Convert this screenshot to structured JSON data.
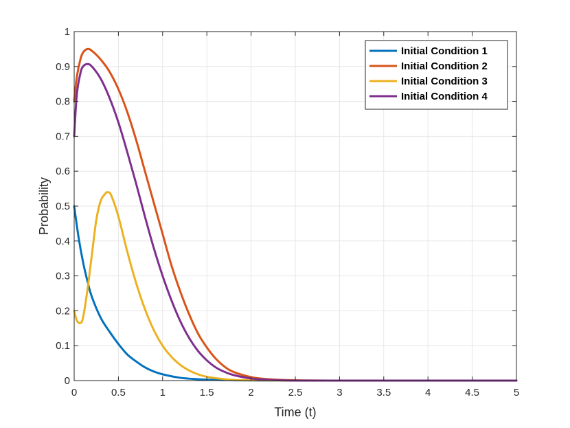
{
  "chart_data": {
    "type": "line",
    "title": "",
    "xlabel": "Time (t)",
    "ylabel": "Probability",
    "xlim": [
      0,
      5
    ],
    "ylim": [
      0,
      1
    ],
    "x_ticks": [
      0,
      0.5,
      1,
      1.5,
      2,
      2.5,
      3,
      3.5,
      4,
      4.5,
      5
    ],
    "x_tick_labels": [
      "0",
      "0.5",
      "1",
      "1.5",
      "2",
      "2.5",
      "3",
      "3.5",
      "4",
      "4.5",
      "5"
    ],
    "y_ticks": [
      0,
      0.1,
      0.2,
      0.3,
      0.4,
      0.5,
      0.6,
      0.7,
      0.8,
      0.9,
      1
    ],
    "y_tick_labels": [
      "0",
      "0.1",
      "0.2",
      "0.3",
      "0.4",
      "0.5",
      "0.6",
      "0.7",
      "0.8",
      "0.9",
      "1"
    ],
    "grid": true,
    "legend_position": "top-right",
    "series": [
      {
        "name": "Initial Condition 1",
        "color": "#0072BD",
        "x": [
          0,
          0.05,
          0.1,
          0.15,
          0.2,
          0.3,
          0.4,
          0.5,
          0.6,
          0.7,
          0.8,
          0.9,
          1.0,
          1.2,
          1.4,
          1.6,
          1.8,
          2.0,
          2.5,
          3,
          3.5,
          4,
          4.5,
          5
        ],
        "y": [
          0.5,
          0.41,
          0.34,
          0.285,
          0.24,
          0.18,
          0.14,
          0.105,
          0.075,
          0.055,
          0.038,
          0.026,
          0.018,
          0.008,
          0.004,
          0.002,
          0.001,
          0.0005,
          0,
          0,
          0,
          0,
          0,
          0
        ]
      },
      {
        "name": "Initial Condition 2",
        "color": "#D95319",
        "x": [
          0,
          0.03,
          0.07,
          0.1,
          0.15,
          0.2,
          0.3,
          0.4,
          0.5,
          0.6,
          0.7,
          0.8,
          0.9,
          1.0,
          1.1,
          1.2,
          1.3,
          1.4,
          1.5,
          1.6,
          1.7,
          1.8,
          2.0,
          2.2,
          2.5,
          3,
          3.5,
          4,
          4.5,
          5
        ],
        "y": [
          0.8,
          0.87,
          0.92,
          0.94,
          0.95,
          0.945,
          0.92,
          0.885,
          0.835,
          0.77,
          0.69,
          0.6,
          0.51,
          0.42,
          0.33,
          0.255,
          0.19,
          0.135,
          0.095,
          0.063,
          0.04,
          0.025,
          0.01,
          0.004,
          0.001,
          0,
          0,
          0,
          0,
          0
        ]
      },
      {
        "name": "Initial Condition 3",
        "color": "#EDB120",
        "x": [
          0,
          0.03,
          0.07,
          0.1,
          0.15,
          0.2,
          0.25,
          0.3,
          0.35,
          0.38,
          0.42,
          0.5,
          0.6,
          0.7,
          0.8,
          0.9,
          1.0,
          1.1,
          1.2,
          1.3,
          1.4,
          1.5,
          1.6,
          1.8,
          2.0,
          2.5,
          3,
          3.5,
          4,
          4.5,
          5
        ],
        "y": [
          0.2,
          0.172,
          0.165,
          0.18,
          0.26,
          0.36,
          0.46,
          0.515,
          0.535,
          0.54,
          0.53,
          0.47,
          0.37,
          0.28,
          0.205,
          0.145,
          0.1,
          0.068,
          0.045,
          0.029,
          0.018,
          0.011,
          0.007,
          0.002,
          0.001,
          0,
          0,
          0,
          0,
          0,
          0
        ]
      },
      {
        "name": "Initial Condition 4",
        "color": "#7E2F8E",
        "x": [
          0,
          0.03,
          0.07,
          0.1,
          0.15,
          0.2,
          0.3,
          0.4,
          0.5,
          0.6,
          0.7,
          0.8,
          0.9,
          1.0,
          1.1,
          1.2,
          1.3,
          1.4,
          1.5,
          1.6,
          1.7,
          1.8,
          2.0,
          2.2,
          2.5,
          3,
          3.5,
          4,
          4.5,
          5
        ],
        "y": [
          0.7,
          0.82,
          0.88,
          0.9,
          0.907,
          0.9,
          0.865,
          0.81,
          0.74,
          0.655,
          0.565,
          0.47,
          0.38,
          0.3,
          0.23,
          0.17,
          0.122,
          0.085,
          0.058,
          0.038,
          0.025,
          0.016,
          0.006,
          0.002,
          0,
          0,
          0,
          0,
          0,
          0
        ]
      }
    ]
  }
}
